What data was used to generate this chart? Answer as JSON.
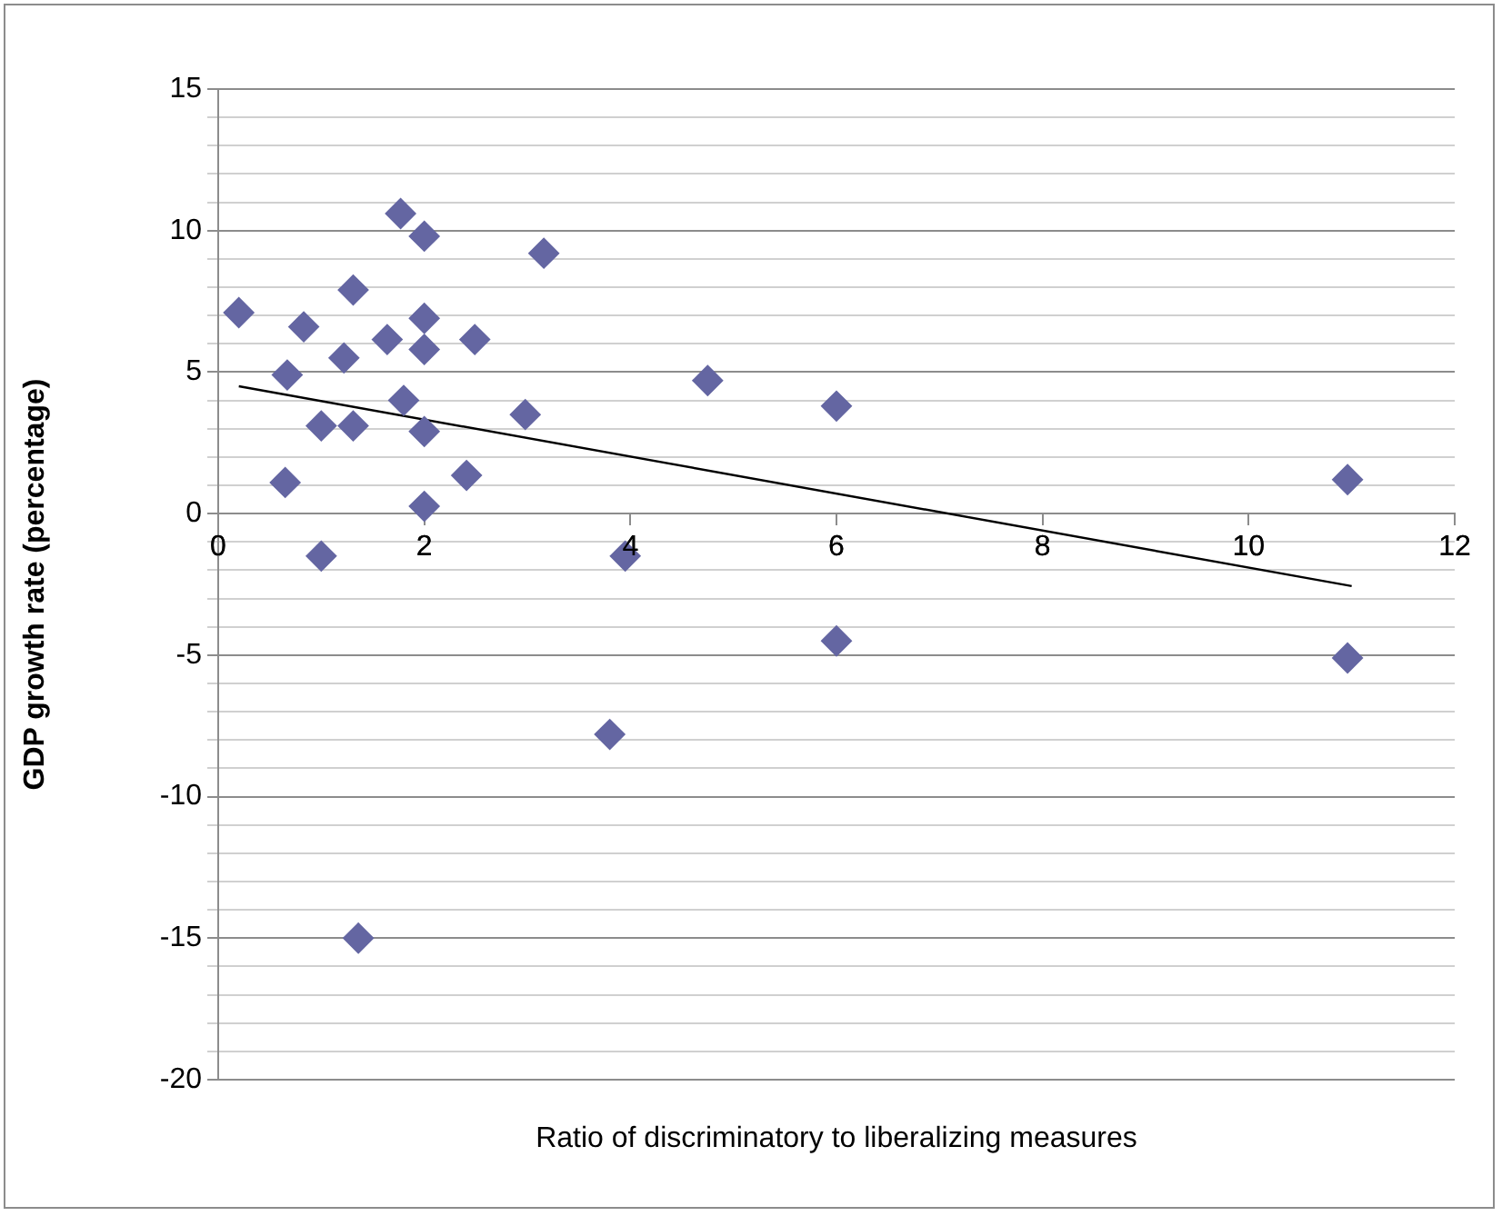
{
  "chart_data": {
    "type": "scatter",
    "xlabel": "Ratio of discriminatory to liberalizing measures",
    "ylabel": "GDP growth rate (percentage)",
    "series": [
      {
        "color": "#6466a2",
        "marker": "diamond",
        "x": [
          0.2,
          1.77,
          2.0,
          3.16,
          1.31,
          0.83,
          2.0,
          1.64,
          2.49,
          2.0,
          1.22,
          0.67,
          4.75,
          6.0,
          1.8,
          2.98,
          1.0,
          1.31,
          2.0,
          2.41,
          0.65,
          2.0,
          10.96,
          1.0,
          3.95,
          6.0,
          10.96,
          3.8,
          1.36
        ],
        "values": [
          7.1,
          10.6,
          9.8,
          9.2,
          7.9,
          6.6,
          6.9,
          6.15,
          6.15,
          5.8,
          5.5,
          4.9,
          4.7,
          3.8,
          4.0,
          3.5,
          3.1,
          3.1,
          2.9,
          1.35,
          1.1,
          0.26,
          1.2,
          -1.5,
          -1.5,
          -4.5,
          -5.1,
          -7.8,
          -15.0
        ]
      },
      {
        "type": "line",
        "color": "#000000",
        "marker": "none",
        "line_style": "solid",
        "x": [
          0.2,
          11.0
        ],
        "values": [
          4.5,
          -2.56
        ]
      }
    ],
    "xlim": [
      0,
      12
    ],
    "xticks": [
      0,
      2,
      4,
      6,
      8,
      10,
      12
    ],
    "ylim": [
      -20,
      15
    ],
    "yticks": [
      -20,
      {
        "value": -19,
        "label": null
      },
      {
        "value": -18,
        "label": null
      },
      {
        "value": -17,
        "label": null
      },
      {
        "value": -16,
        "label": null
      },
      -15,
      {
        "value": -14,
        "label": null
      },
      {
        "value": -13,
        "label": null
      },
      {
        "value": -12,
        "label": null
      },
      {
        "value": -11,
        "label": null
      },
      -10,
      {
        "value": -9,
        "label": null
      },
      {
        "value": -8,
        "label": null
      },
      {
        "value": -7,
        "label": null
      },
      {
        "value": -6,
        "label": null
      },
      -5,
      {
        "value": -4,
        "label": null
      },
      {
        "value": -3,
        "label": null
      },
      {
        "value": -2,
        "label": null
      },
      {
        "value": -1,
        "label": null
      },
      0,
      {
        "value": 1,
        "label": null
      },
      {
        "value": 2,
        "label": null
      },
      {
        "value": 3,
        "label": null
      },
      {
        "value": 4,
        "label": null
      },
      5,
      {
        "value": 6,
        "label": null
      },
      {
        "value": 7,
        "label": null
      },
      {
        "value": 8,
        "label": null
      },
      {
        "value": 9,
        "label": null
      },
      10,
      {
        "value": 11,
        "label": null
      },
      {
        "value": 12,
        "label": null
      },
      {
        "value": 13,
        "label": null
      },
      {
        "value": 14,
        "label": null
      },
      15
    ],
    "grid": "y",
    "legend": false
  }
}
